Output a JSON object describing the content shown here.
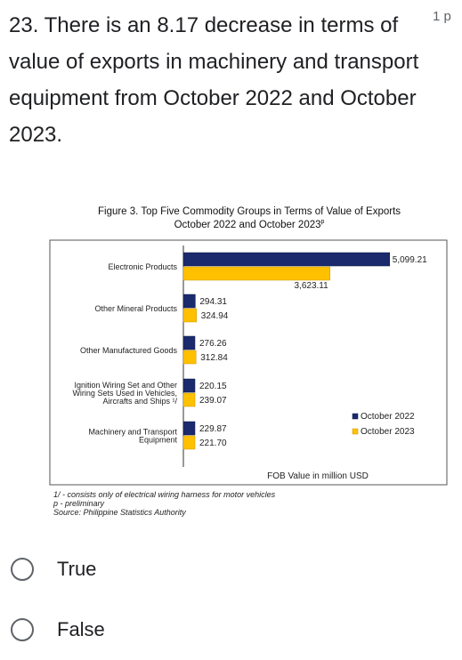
{
  "question": {
    "text": "23. There is an 8.17 decrease in terms of value of exports in machinery and transport equipment from October 2022 and October 2023.",
    "points": "1 p"
  },
  "figure": {
    "title_line1": "Figure 3. Top Five Commodity Groups in Terms of Value of Exports",
    "title_line2": "October 2022 and October 2023",
    "title_line2_sup": "p",
    "notes": [
      "1/ - consists only of electrical wiring harness for motor vehicles",
      "p - preliminary",
      "Source: Philippine Statistics Authority"
    ]
  },
  "chart_data": {
    "type": "bar",
    "orientation": "horizontal",
    "categories": [
      [
        "Electronic Products"
      ],
      [
        "Other Mineral Products"
      ],
      [
        "Other Manufactured Goods"
      ],
      [
        "Ignition Wiring Set and Other",
        "Wiring Sets Used in Vehicles,",
        "Aircrafts and Ships ¹/"
      ],
      [
        "Machinery and Transport",
        "Equipment"
      ]
    ],
    "series": [
      {
        "name": "October 2022",
        "color": "#1a2a6c",
        "values": [
          5099.21,
          294.31,
          276.26,
          220.15,
          229.87
        ],
        "labels": [
          "5,099.21",
          "294.31",
          "276.26",
          "220.15",
          "229.87"
        ]
      },
      {
        "name": "October 2023",
        "color": "#ffc000",
        "values": [
          3623.11,
          324.94,
          312.84,
          239.07,
          221.7
        ],
        "labels": [
          "3,623.11",
          "324.94",
          "312.84",
          "239.07",
          "221.70"
        ]
      }
    ],
    "xlabel": "FOB Value in million USD",
    "xlim": [
      0,
      5500
    ],
    "legend_position": "lower-right",
    "grid": false
  },
  "options": [
    {
      "label": "True"
    },
    {
      "label": "False"
    }
  ]
}
